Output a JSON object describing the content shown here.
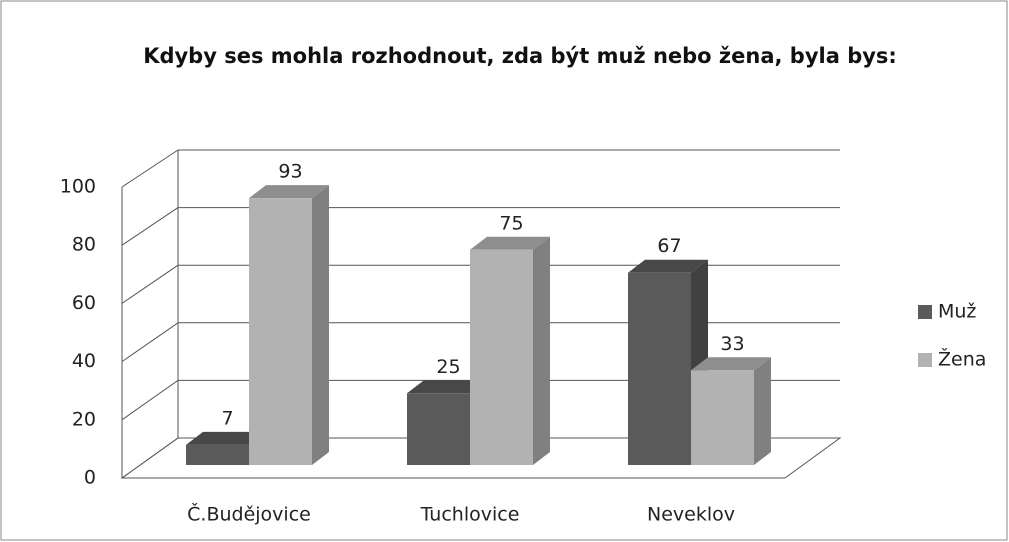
{
  "chart_data": {
    "type": "bar3d",
    "title": "Kdyby ses mohla rozhodnout, zda být muž nebo žena, byla bys:",
    "categories": [
      "Č.Budějovice",
      "Tuchlovice",
      "Neveklov"
    ],
    "series": [
      {
        "name": "Muž",
        "color": "#5a5a5a",
        "values": [
          7,
          25,
          67
        ]
      },
      {
        "name": "Žena",
        "color": "#b2b2b2",
        "values": [
          93,
          75,
          33
        ]
      }
    ],
    "ylim": [
      0,
      100
    ],
    "yticks": [
      0,
      20,
      40,
      60,
      80,
      100
    ],
    "grid": true,
    "legend": "right"
  }
}
